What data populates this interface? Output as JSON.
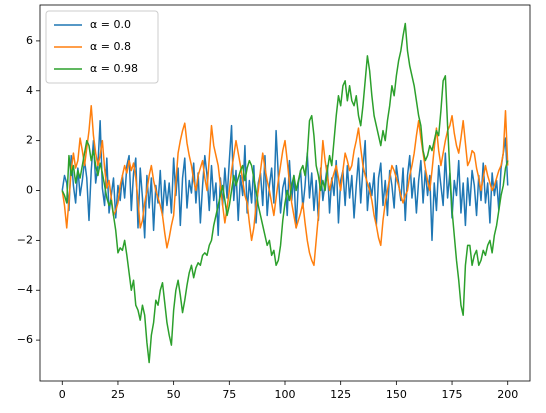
{
  "chart_data": {
    "type": "line",
    "x": [
      0,
      1,
      2,
      3,
      4,
      5,
      6,
      7,
      8,
      9,
      10,
      11,
      12,
      13,
      14,
      15,
      16,
      17,
      18,
      19,
      20,
      21,
      22,
      23,
      24,
      25,
      26,
      27,
      28,
      29,
      30,
      31,
      32,
      33,
      34,
      35,
      36,
      37,
      38,
      39,
      40,
      41,
      42,
      43,
      44,
      45,
      46,
      47,
      48,
      49,
      50,
      51,
      52,
      53,
      54,
      55,
      56,
      57,
      58,
      59,
      60,
      61,
      62,
      63,
      64,
      65,
      66,
      67,
      68,
      69,
      70,
      71,
      72,
      73,
      74,
      75,
      76,
      77,
      78,
      79,
      80,
      81,
      82,
      83,
      84,
      85,
      86,
      87,
      88,
      89,
      90,
      91,
      92,
      93,
      94,
      95,
      96,
      97,
      98,
      99,
      100,
      101,
      102,
      103,
      104,
      105,
      106,
      107,
      108,
      109,
      110,
      111,
      112,
      113,
      114,
      115,
      116,
      117,
      118,
      119,
      120,
      121,
      122,
      123,
      124,
      125,
      126,
      127,
      128,
      129,
      130,
      131,
      132,
      133,
      134,
      135,
      136,
      137,
      138,
      139,
      140,
      141,
      142,
      143,
      144,
      145,
      146,
      147,
      148,
      149,
      150,
      151,
      152,
      153,
      154,
      155,
      156,
      157,
      158,
      159,
      160,
      161,
      162,
      163,
      164,
      165,
      166,
      167,
      168,
      169,
      170,
      171,
      172,
      173,
      174,
      175,
      176,
      177,
      178,
      179,
      180,
      181,
      182,
      183,
      184,
      185,
      186,
      187,
      188,
      189,
      190,
      191,
      192,
      193,
      194,
      195,
      196,
      197,
      198,
      199,
      200
    ],
    "series": [
      {
        "name": "α = 0.0",
        "color": "#1f77b4",
        "values": [
          0.0,
          0.6,
          0.3,
          -0.8,
          1.4,
          0.2,
          -0.5,
          0.9,
          -0.2,
          0.4,
          1.2,
          0.5,
          -1.2,
          0.8,
          2.0,
          0.3,
          1.0,
          2.8,
          0.1,
          -0.6,
          1.3,
          -0.9,
          -0.2,
          0.5,
          -1.1,
          0.2,
          -0.4,
          0.6,
          -0.3,
          1.0,
          1.4,
          -0.8,
          0.7,
          1.3,
          -1.5,
          0.9,
          -0.3,
          -1.9,
          0.6,
          -0.7,
          0.5,
          -1.6,
          0.2,
          -0.5,
          0.8,
          -1.0,
          0.4,
          -0.6,
          0.3,
          -0.9,
          1.3,
          -0.2,
          0.9,
          -1.4,
          0.5,
          1.3,
          -0.7,
          0.4,
          -0.1,
          1.1,
          -0.5,
          0.7,
          -1.3,
          0.2,
          1.4,
          0.6,
          -0.8,
          1.0,
          -0.4,
          0.3,
          -1.8,
          0.5,
          -0.6,
          0.9,
          -0.3,
          1.2,
          2.6,
          -0.4,
          0.8,
          -1.2,
          0.6,
          -0.2,
          1.8,
          -0.9,
          0.4,
          -0.5,
          1.0,
          -1.3,
          0.3,
          0.7,
          -0.6,
          1.4,
          -1.0,
          0.2,
          0.9,
          -0.5,
          2.4,
          0.6,
          -0.9,
          0.1,
          0.5,
          -1.0,
          1.2,
          -0.4,
          0.6,
          -1.5,
          0.3,
          0.8,
          -0.7,
          0.2,
          1.5,
          -0.3,
          0.7,
          -0.8,
          0.4,
          -1.2,
          0.9,
          -0.4,
          0.3,
          1.0,
          -0.9,
          0.5,
          -0.2,
          1.2,
          -1.3,
          0.4,
          0.8,
          -0.6,
          1.0,
          -0.3,
          0.6,
          -1.1,
          0.2,
          1.3,
          -0.5,
          0.9,
          2.0,
          -0.8,
          0.3,
          -0.2,
          0.7,
          -1.4,
          0.5,
          1.1,
          -0.6,
          0.4,
          -1.0,
          0.8,
          0.2,
          -0.7,
          1.0,
          0.3,
          -0.4,
          0.9,
          -1.2,
          0.6,
          1.4,
          -0.3,
          0.5,
          -0.9,
          0.4,
          1.2,
          -0.5,
          0.8,
          -0.2,
          0.6,
          -2.0,
          0.3,
          -0.8,
          1.0,
          0.2,
          -0.6,
          1.5,
          -0.3,
          0.7,
          -1.1,
          0.4,
          -0.2,
          1.2,
          -0.9,
          0.3,
          -1.4,
          0.5,
          -0.6,
          0.8,
          0.2,
          -1.0,
          0.6,
          -0.4,
          1.1,
          -0.5,
          0.3,
          -1.3,
          0.7,
          -0.2,
          0.4,
          -0.8,
          0.9,
          1.5,
          2.1,
          0.2
        ]
      },
      {
        "name": "α = 0.8",
        "color": "#ff7f0e",
        "values": [
          0.0,
          -0.6,
          -1.5,
          -0.4,
          0.8,
          1.5,
          0.9,
          1.2,
          2.1,
          1.6,
          1.0,
          1.7,
          2.4,
          3.4,
          2.2,
          1.5,
          1.0,
          1.4,
          2.0,
          0.9,
          0.1,
          0.4,
          -0.3,
          -1.0,
          -0.8,
          -0.5,
          0.2,
          0.6,
          1.0,
          0.7,
          1.2,
          0.8,
          1.1,
          0.5,
          -0.4,
          -1.5,
          -1.2,
          -0.5,
          0.0,
          0.6,
          1.0,
          0.4,
          0.0,
          -0.3,
          -0.6,
          -1.0,
          -1.7,
          -2.3,
          -1.9,
          -1.4,
          -1.0,
          0.3,
          1.5,
          2.0,
          2.4,
          2.7,
          1.9,
          1.4,
          1.0,
          0.4,
          0.0,
          0.6,
          0.9,
          1.2,
          0.5,
          0.0,
          1.3,
          2.6,
          1.8,
          1.4,
          1.0,
          0.2,
          -0.6,
          -1.3,
          -0.7,
          0.0,
          0.8,
          1.4,
          2.0,
          1.5,
          1.0,
          0.4,
          -0.2,
          -0.5,
          -1.3,
          -2.0,
          -1.5,
          -0.6,
          0.0,
          0.8,
          1.5,
          0.9,
          0.4,
          0.0,
          -0.5,
          -1.0,
          -0.3,
          0.4,
          1.0,
          1.6,
          2.0,
          1.2,
          0.3,
          -0.5,
          -1.0,
          -1.5,
          -1.2,
          -0.9,
          -0.5,
          -1.3,
          -2.0,
          -2.5,
          -2.8,
          -3.0,
          -2.0,
          -1.0,
          0.6,
          2.0,
          1.2,
          0.6,
          0.0,
          0.4,
          0.7,
          1.0,
          0.5,
          0.0,
          0.8,
          1.5,
          1.2,
          0.8,
          1.0,
          1.6,
          2.0,
          2.5,
          1.7,
          1.0,
          0.6,
          0.3,
          0.0,
          -0.4,
          -1.0,
          -1.4,
          -1.9,
          -2.2,
          -1.2,
          -0.5,
          0.0,
          0.5,
          1.0,
          0.8,
          0.5,
          0.2,
          -0.2,
          -0.5,
          -0.2,
          0.0,
          0.6,
          1.0,
          1.5,
          2.2,
          2.8,
          2.1,
          1.5,
          0.9,
          0.4,
          0.0,
          0.8,
          1.7,
          2.5,
          1.6,
          1.0,
          1.5,
          2.0,
          2.4,
          2.6,
          3.0,
          2.3,
          1.8,
          1.5,
          2.1,
          2.8,
          1.9,
          1.0,
          1.2,
          1.6,
          1.5,
          0.9,
          0.5,
          0.0,
          0.5,
          1.0,
          0.6,
          0.3,
          0.0,
          0.2,
          0.5,
          0.8,
          1.0,
          1.5,
          3.2,
          1.0
        ]
      },
      {
        "name": "α = 0.98",
        "color": "#2ca02c",
        "values": [
          0.0,
          -0.2,
          -0.5,
          1.4,
          0.6,
          1.0,
          0.3,
          0.8,
          0.5,
          1.0,
          1.5,
          2.0,
          1.8,
          1.2,
          1.6,
          1.0,
          0.6,
          1.1,
          0.7,
          0.2,
          -0.3,
          -0.6,
          -0.4,
          -1.0,
          -1.6,
          -2.5,
          -2.3,
          -2.4,
          -2.0,
          -2.6,
          -3.3,
          -4.0,
          -3.6,
          -4.6,
          -4.8,
          -5.2,
          -4.6,
          -5.0,
          -6.1,
          -6.9,
          -5.8,
          -5.3,
          -4.4,
          -4.6,
          -4.0,
          -3.7,
          -4.5,
          -5.3,
          -5.8,
          -6.2,
          -4.8,
          -4.0,
          -3.6,
          -4.2,
          -4.9,
          -4.4,
          -3.8,
          -3.3,
          -3.0,
          -3.5,
          -3.1,
          -2.9,
          -3.0,
          -2.6,
          -2.5,
          -2.6,
          -2.2,
          -2.0,
          -1.4,
          -1.0,
          -0.6,
          -0.2,
          0.2,
          -0.4,
          -1.0,
          -0.6,
          0.0,
          0.6,
          0.2,
          0.5,
          0.8,
          1.0,
          0.4,
          0.9,
          1.2,
          1.0,
          0.5,
          0.0,
          -0.6,
          -1.0,
          -1.4,
          -1.8,
          -2.2,
          -2.0,
          -2.6,
          -2.4,
          -3.0,
          -2.8,
          -2.2,
          -1.2,
          -0.5,
          0.0,
          -0.4,
          0.2,
          0.6,
          0.0,
          0.4,
          0.8,
          1.0,
          0.6,
          1.4,
          2.8,
          3.0,
          2.2,
          1.0,
          0.6,
          0.0,
          0.4,
          0.0,
          0.8,
          1.4,
          1.0,
          2.0,
          3.0,
          3.8,
          3.4,
          4.2,
          4.4,
          3.6,
          4.2,
          3.6,
          3.4,
          3.8,
          3.0,
          2.6,
          3.4,
          4.4,
          5.4,
          4.8,
          3.8,
          3.0,
          2.6,
          2.2,
          1.8,
          2.4,
          2.0,
          2.8,
          3.4,
          4.2,
          3.8,
          4.6,
          5.2,
          5.6,
          6.2,
          6.7,
          5.6,
          5.0,
          4.6,
          4.2,
          3.6,
          3.0,
          2.6,
          1.6,
          1.2,
          1.4,
          1.8,
          1.6,
          2.0,
          2.4,
          2.2,
          3.2,
          4.4,
          4.6,
          2.6,
          0.8,
          -0.8,
          -1.8,
          -2.8,
          -3.6,
          -4.6,
          -5.0,
          -3.0,
          -2.2,
          -2.2,
          -3.0,
          -2.6,
          -2.4,
          -3.0,
          -2.8,
          -2.4,
          -2.6,
          -2.2,
          -2.0,
          -2.5,
          -1.8,
          -1.4,
          -0.8,
          -0.2,
          0.2,
          0.9,
          1.2
        ]
      }
    ],
    "xlim": [
      -10,
      210
    ],
    "ylim": [
      -7.64,
      7.44
    ],
    "xticks": [
      0,
      25,
      50,
      75,
      100,
      125,
      150,
      175,
      200
    ],
    "yticks": [
      {
        "value": -6,
        "label": "−6"
      },
      {
        "value": -4,
        "label": "−4"
      },
      {
        "value": -2,
        "label": "−2"
      },
      0,
      2,
      4,
      6
    ],
    "grid": false,
    "legend": "upper left"
  }
}
